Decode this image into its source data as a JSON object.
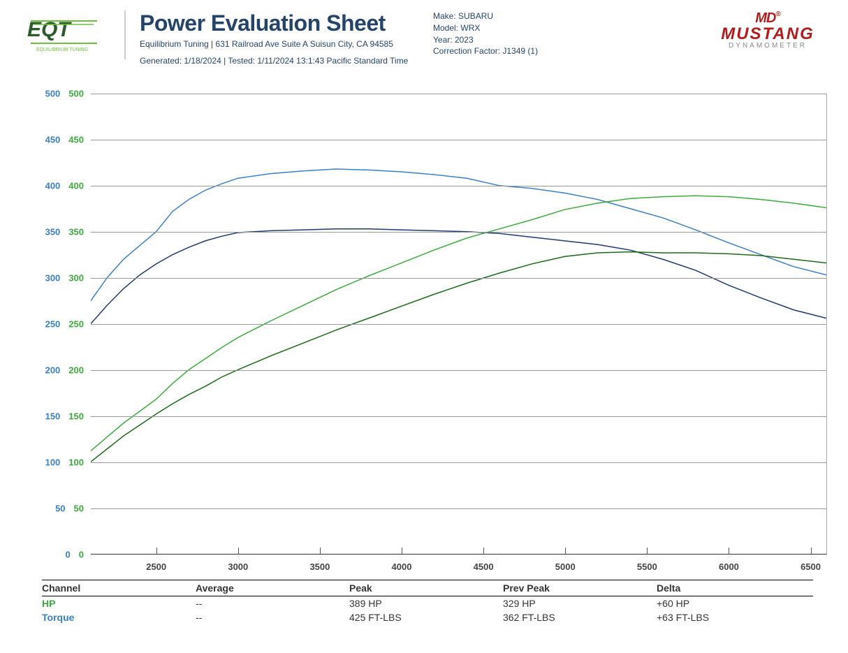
{
  "header": {
    "title": "Power Evaluation Sheet",
    "company_line": "Equilibrium Tuning | 631 Railroad Ave Suite A Suisun City, CA 94585",
    "generated_line": "Generated: 1/18/2024 | Tested: 1/11/2024 13:1:43 Pacific Standard Time",
    "meta": {
      "make_label": "Make:",
      "make": "SUBARU",
      "model_label": "Model:",
      "model": "WRX",
      "year_label": "Year:",
      "year": "2023",
      "cf_label": "Correction Factor:",
      "cf": "J1349 (1)"
    },
    "logo_left_text": "EQUILIBRIUM TUNING",
    "logo_right_mustang": "MUSTANG",
    "logo_right_dyno": "DYNAMOMETER"
  },
  "chart": {
    "type": "line",
    "xlim": [
      2100,
      6600
    ],
    "ylim": [
      0,
      500
    ],
    "ytick_step": 50,
    "xticks": [
      2500,
      3000,
      3500,
      4000,
      4500,
      5000,
      5500,
      6000,
      6500
    ],
    "y_color_hp": "#3faa3f",
    "y_color_tq": "#3b7fc4",
    "grid_color": "#999999",
    "background_color": "#ffffff",
    "series": {
      "tq_current": {
        "color": "#3b7fc4",
        "width": 1.5,
        "points": [
          [
            2100,
            275
          ],
          [
            2200,
            300
          ],
          [
            2300,
            320
          ],
          [
            2400,
            335
          ],
          [
            2500,
            350
          ],
          [
            2600,
            372
          ],
          [
            2700,
            385
          ],
          [
            2800,
            395
          ],
          [
            2900,
            402
          ],
          [
            3000,
            408
          ],
          [
            3200,
            413
          ],
          [
            3400,
            416
          ],
          [
            3600,
            418
          ],
          [
            3800,
            417
          ],
          [
            4000,
            415
          ],
          [
            4200,
            412
          ],
          [
            4400,
            408
          ],
          [
            4600,
            400
          ],
          [
            4800,
            397
          ],
          [
            5000,
            392
          ],
          [
            5200,
            385
          ],
          [
            5400,
            375
          ],
          [
            5600,
            365
          ],
          [
            5800,
            352
          ],
          [
            6000,
            338
          ],
          [
            6200,
            325
          ],
          [
            6400,
            312
          ],
          [
            6600,
            303
          ]
        ]
      },
      "tq_prev": {
        "color": "#1f3a6e",
        "width": 1.5,
        "points": [
          [
            2100,
            250
          ],
          [
            2200,
            270
          ],
          [
            2300,
            288
          ],
          [
            2400,
            303
          ],
          [
            2500,
            315
          ],
          [
            2600,
            325
          ],
          [
            2700,
            333
          ],
          [
            2800,
            340
          ],
          [
            2900,
            345
          ],
          [
            3000,
            349
          ],
          [
            3200,
            351
          ],
          [
            3400,
            352
          ],
          [
            3600,
            353
          ],
          [
            3800,
            353
          ],
          [
            4000,
            352
          ],
          [
            4200,
            351
          ],
          [
            4400,
            350
          ],
          [
            4600,
            348
          ],
          [
            4800,
            344
          ],
          [
            5000,
            340
          ],
          [
            5200,
            336
          ],
          [
            5400,
            330
          ],
          [
            5600,
            320
          ],
          [
            5800,
            308
          ],
          [
            6000,
            292
          ],
          [
            6200,
            278
          ],
          [
            6400,
            265
          ],
          [
            6600,
            256
          ]
        ]
      },
      "hp_current": {
        "color": "#3faa3f",
        "width": 1.5,
        "points": [
          [
            2100,
            112
          ],
          [
            2200,
            127
          ],
          [
            2300,
            142
          ],
          [
            2400,
            155
          ],
          [
            2500,
            168
          ],
          [
            2600,
            185
          ],
          [
            2700,
            200
          ],
          [
            2800,
            212
          ],
          [
            2900,
            224
          ],
          [
            3000,
            235
          ],
          [
            3200,
            253
          ],
          [
            3400,
            270
          ],
          [
            3600,
            287
          ],
          [
            3800,
            302
          ],
          [
            4000,
            316
          ],
          [
            4200,
            330
          ],
          [
            4400,
            343
          ],
          [
            4600,
            353
          ],
          [
            4800,
            363
          ],
          [
            5000,
            374
          ],
          [
            5200,
            381
          ],
          [
            5400,
            386
          ],
          [
            5600,
            388
          ],
          [
            5800,
            389
          ],
          [
            6000,
            388
          ],
          [
            6200,
            385
          ],
          [
            6400,
            381
          ],
          [
            6600,
            376
          ]
        ]
      },
      "hp_prev": {
        "color": "#1a6b1a",
        "width": 1.5,
        "points": [
          [
            2100,
            100
          ],
          [
            2200,
            114
          ],
          [
            2300,
            128
          ],
          [
            2400,
            140
          ],
          [
            2500,
            152
          ],
          [
            2600,
            163
          ],
          [
            2700,
            173
          ],
          [
            2800,
            182
          ],
          [
            2900,
            192
          ],
          [
            3000,
            200
          ],
          [
            3200,
            215
          ],
          [
            3400,
            229
          ],
          [
            3600,
            243
          ],
          [
            3800,
            256
          ],
          [
            4000,
            269
          ],
          [
            4200,
            282
          ],
          [
            4400,
            294
          ],
          [
            4600,
            305
          ],
          [
            4800,
            315
          ],
          [
            5000,
            323
          ],
          [
            5200,
            327
          ],
          [
            5400,
            328
          ],
          [
            5600,
            327
          ],
          [
            5800,
            327
          ],
          [
            6000,
            326
          ],
          [
            6200,
            324
          ],
          [
            6400,
            320
          ],
          [
            6600,
            316
          ]
        ]
      }
    }
  },
  "table": {
    "headers": {
      "channel": "Channel",
      "average": "Average",
      "peak": "Peak",
      "prev_peak": "Prev Peak",
      "delta": "Delta"
    },
    "rows": [
      {
        "channel": "HP",
        "color": "#3faa3f",
        "average": "--",
        "peak": "389 HP",
        "prev_peak": "329 HP",
        "delta": "+60 HP"
      },
      {
        "channel": "Torque",
        "color": "#3b7fc4",
        "average": "--",
        "peak": "425 FT-LBS",
        "prev_peak": "362 FT-LBS",
        "delta": "+63 FT-LBS"
      }
    ]
  }
}
